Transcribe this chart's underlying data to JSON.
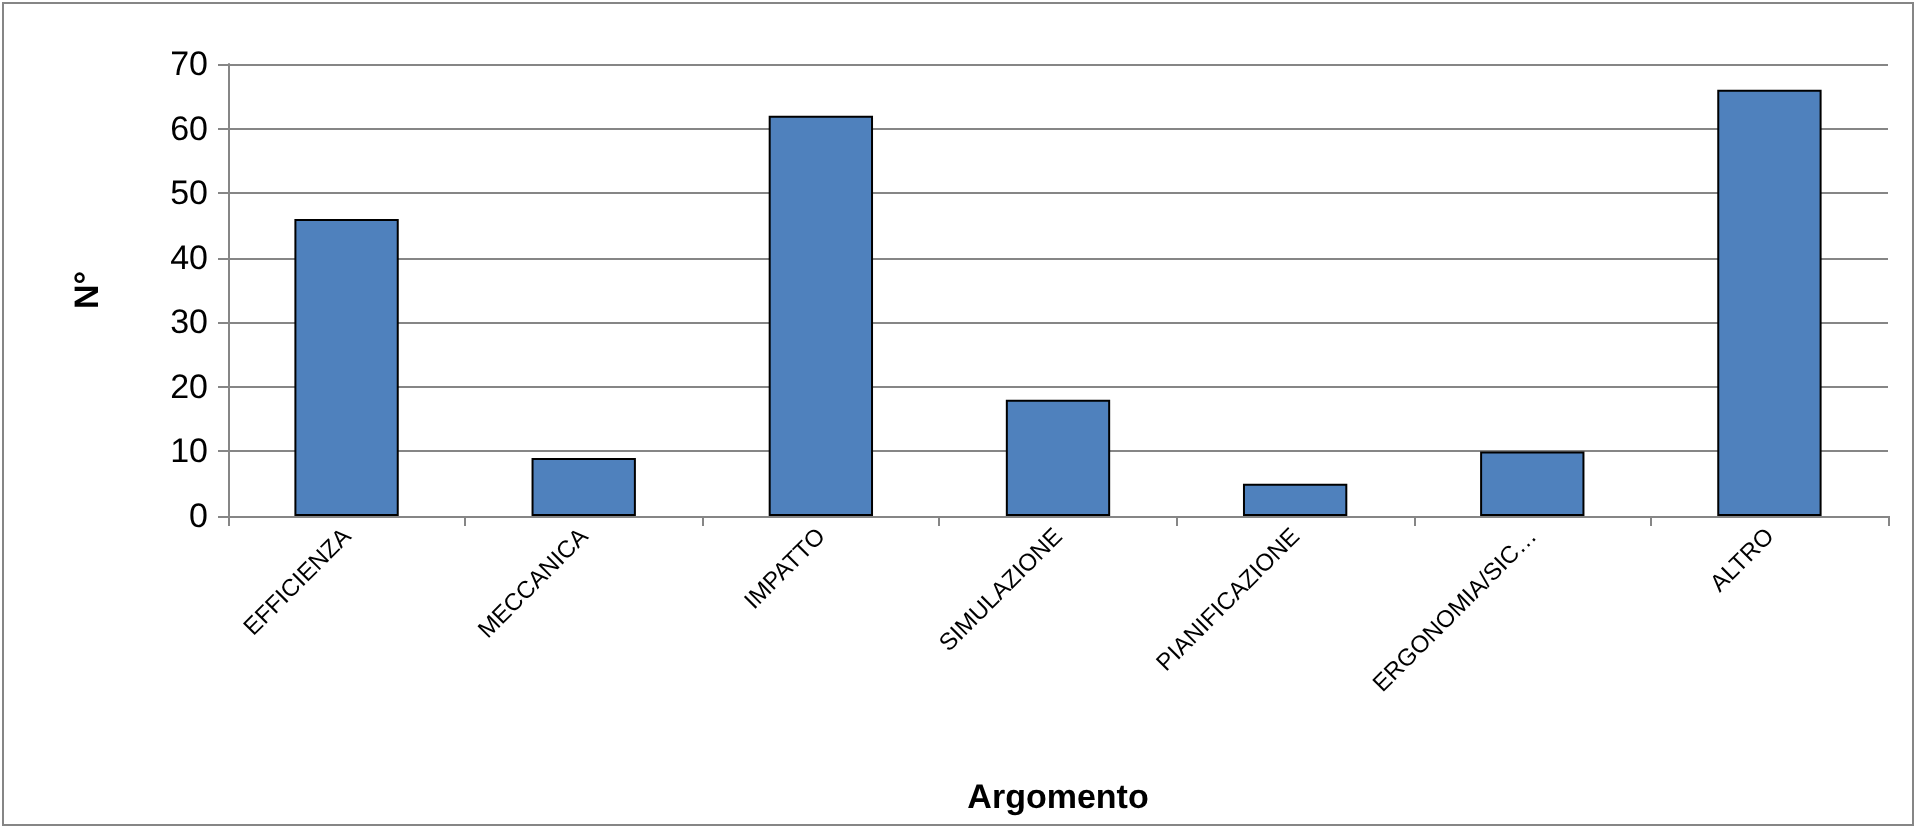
{
  "chart_data": {
    "type": "bar",
    "xlabel": "Argomento",
    "ylabel": "N°",
    "categories": [
      "EFFICIENZA",
      "MECCANICA",
      "IMPATTO",
      "SIMULAZIONE",
      "PIANIFICAZIONE",
      "ERGONOMIA/SIC…",
      "ALTRO"
    ],
    "values": [
      46,
      9,
      62,
      18,
      5,
      10,
      66
    ],
    "color": "#4f81bd",
    "ylim": [
      0,
      70
    ],
    "yticks": [
      0,
      10,
      20,
      30,
      40,
      50,
      60,
      70
    ],
    "grid": "y"
  }
}
